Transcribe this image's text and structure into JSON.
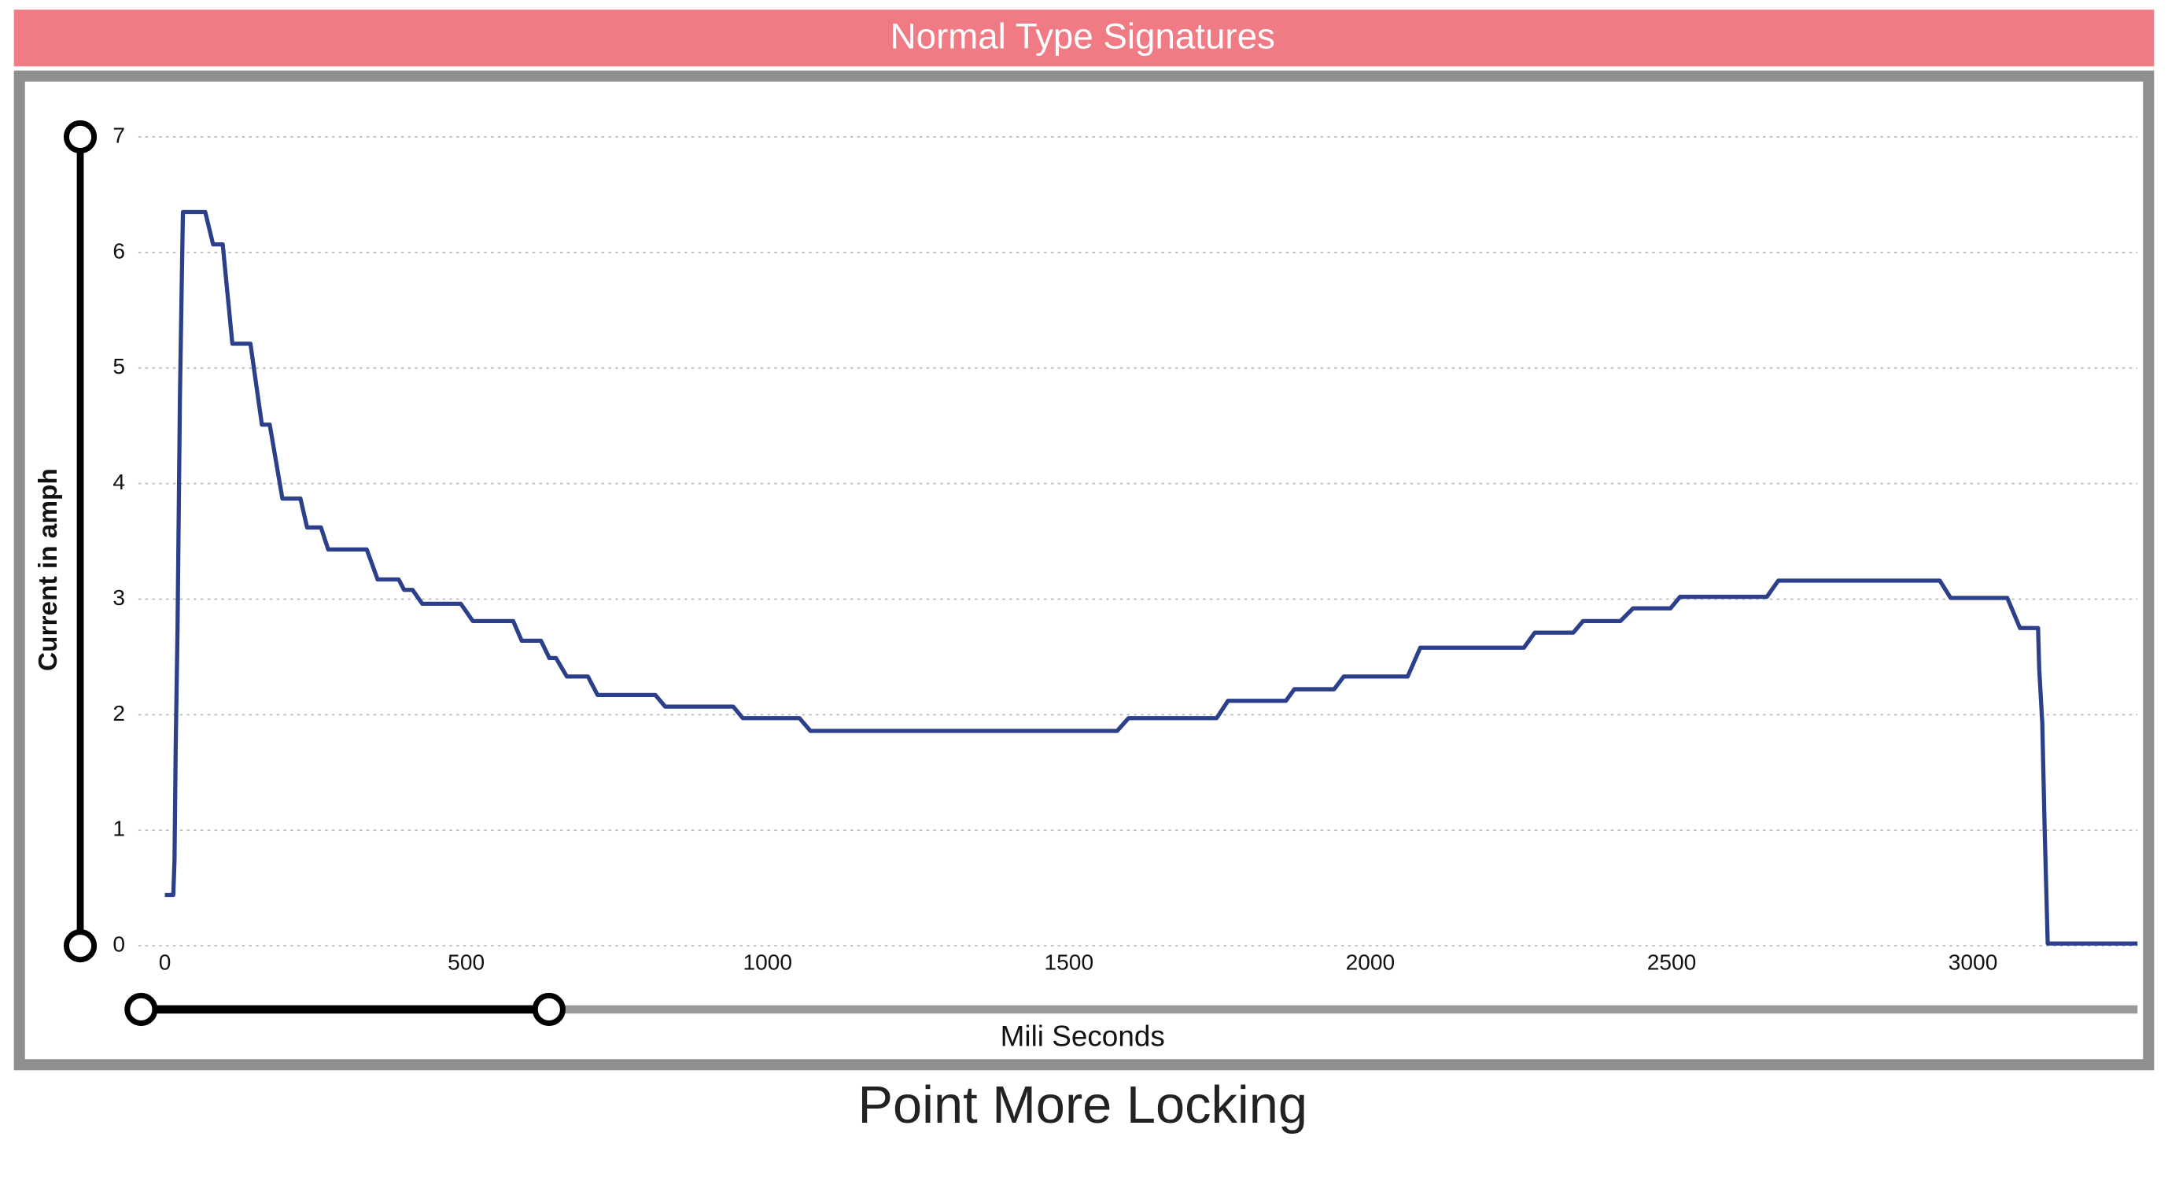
{
  "chart_data": {
    "type": "line",
    "header": "Normal Type Signatures",
    "title": "Point More Locking",
    "x_label": "Mili Seconds",
    "y_label": "Current in amph",
    "x": [
      0,
      14,
      16,
      18,
      21,
      23,
      25,
      28,
      30,
      67,
      80,
      96,
      112,
      142,
      161,
      174,
      195,
      225,
      236,
      259,
      271,
      335,
      353,
      388,
      397,
      411,
      427,
      491,
      511,
      578,
      592,
      624,
      638,
      649,
      667,
      702,
      718,
      814,
      830,
      943,
      959,
      1053,
      1071,
      1580,
      1599,
      1745,
      1764,
      1860,
      1874,
      1940,
      1956,
      2062,
      2083,
      2255,
      2273,
      2337,
      2353,
      2415,
      2436,
      2498,
      2514,
      2658,
      2677,
      2945,
      2963,
      3057,
      3078,
      3108,
      3110,
      3115,
      3119,
      3124,
      3273
    ],
    "series": [
      {
        "name": "Current",
        "color": "#2b3f8a",
        "values": [
          0.44,
          0.44,
          0.74,
          1.72,
          2.74,
          3.73,
          4.74,
          5.73,
          6.35,
          6.35,
          6.07,
          6.07,
          5.21,
          5.21,
          4.51,
          4.51,
          3.87,
          3.87,
          3.62,
          3.62,
          3.43,
          3.43,
          3.17,
          3.17,
          3.08,
          3.08,
          2.96,
          2.96,
          2.81,
          2.81,
          2.64,
          2.64,
          2.49,
          2.49,
          2.33,
          2.33,
          2.17,
          2.17,
          2.07,
          2.07,
          1.97,
          1.97,
          1.86,
          1.86,
          1.97,
          1.97,
          2.12,
          2.12,
          2.22,
          2.22,
          2.33,
          2.33,
          2.58,
          2.58,
          2.71,
          2.71,
          2.81,
          2.81,
          2.92,
          2.92,
          3.02,
          3.02,
          3.16,
          3.16,
          3.01,
          3.01,
          2.75,
          2.75,
          2.39,
          1.93,
          1.0,
          0.02,
          0.02
        ]
      }
    ],
    "xlim": [
      -44,
      3273
    ],
    "ylim": [
      0,
      7
    ],
    "xticks": [
      0,
      500,
      1000,
      1500,
      2000,
      2500,
      3000
    ],
    "yticks": [
      0,
      1,
      2,
      3,
      4,
      5,
      6,
      7
    ],
    "grid": true
  }
}
